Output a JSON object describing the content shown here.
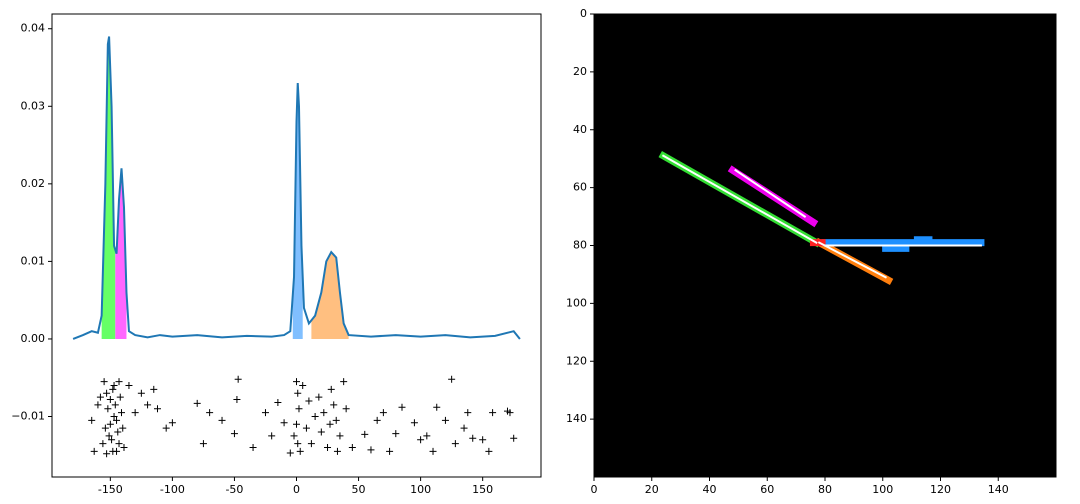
{
  "chart_data": [
    {
      "type": "line",
      "color": "#1f77b4",
      "x": [
        -180,
        -172,
        -165,
        -160,
        -157,
        -154,
        -152,
        -151,
        -149,
        -147,
        -145,
        -143,
        -141,
        -139,
        -137,
        -135,
        -130,
        -120,
        -110,
        -100,
        -80,
        -60,
        -40,
        -20,
        -10,
        -5,
        -2,
        0,
        1,
        2,
        4,
        6,
        10,
        15,
        20,
        24,
        28,
        32,
        35,
        38,
        42,
        60,
        80,
        100,
        120,
        140,
        160,
        175,
        180
      ],
      "values": [
        0,
        0.0005,
        0.001,
        0.0008,
        0.003,
        0.02,
        0.038,
        0.039,
        0.03,
        0.012,
        0.011,
        0.018,
        0.022,
        0.017,
        0.006,
        0.001,
        0.0005,
        0.0002,
        0.0005,
        0.0003,
        0.0005,
        0.0002,
        0.0004,
        0.0003,
        0.0005,
        0.001,
        0.008,
        0.028,
        0.033,
        0.03,
        0.012,
        0.004,
        0.002,
        0.003,
        0.006,
        0.01,
        0.0112,
        0.0105,
        0.006,
        0.002,
        0.0005,
        0.0003,
        0.0005,
        0.0003,
        0.0005,
        0.0002,
        0.0004,
        0.001,
        0
      ],
      "fills": [
        {
          "color": "#66ff66",
          "span": [
            -157,
            -146
          ]
        },
        {
          "color": "#ff66ff",
          "span": [
            -146,
            -137
          ]
        },
        {
          "color": "#80bfff",
          "span": [
            -3,
            5
          ]
        },
        {
          "color": "#ffbf80",
          "span": [
            12,
            42
          ]
        }
      ],
      "scatter": {
        "color": "#000000",
        "marker": "+",
        "x": [
          -160,
          -165,
          -163,
          -158,
          -135,
          -130,
          -125,
          -120,
          -115,
          -112,
          -105,
          -100,
          -80,
          -75,
          -70,
          -60,
          -50,
          -48,
          -47,
          -35,
          -25,
          -20,
          -15,
          -10,
          -5,
          55,
          60,
          65,
          70,
          75,
          80,
          85,
          95,
          100,
          105,
          110,
          113,
          120,
          125,
          128,
          135,
          138,
          142,
          150,
          155,
          158,
          170,
          172,
          175,
          -155,
          -153,
          -152,
          -150,
          -149,
          -148,
          -147,
          -146,
          -145,
          -144,
          -143,
          -142,
          -141,
          -140,
          -139,
          -151,
          -154,
          -156,
          -148,
          -145,
          -150,
          -143,
          -153,
          -147,
          0,
          1,
          2,
          0,
          1,
          3,
          5,
          10,
          15,
          20,
          25,
          28,
          30,
          32,
          35,
          38,
          40,
          8,
          12,
          18,
          22,
          33,
          45,
          -2,
          27
        ],
        "y": [
          -0.0085,
          -0.0105,
          -0.0145,
          -0.0075,
          -0.006,
          -0.0095,
          -0.007,
          -0.0085,
          -0.0065,
          -0.009,
          -0.0115,
          -0.0108,
          -0.0083,
          -0.0135,
          -0.0095,
          -0.0105,
          -0.0122,
          -0.0078,
          -0.0052,
          -0.014,
          -0.0095,
          -0.0125,
          -0.0082,
          -0.0108,
          -0.0147,
          -0.0123,
          -0.0143,
          -0.0105,
          -0.0095,
          -0.0145,
          -0.0122,
          -0.0088,
          -0.0108,
          -0.013,
          -0.0125,
          -0.0145,
          -0.0088,
          -0.0105,
          -0.0052,
          -0.0135,
          -0.0115,
          -0.0095,
          -0.0128,
          -0.013,
          -0.0145,
          -0.0095,
          -0.0093,
          -0.0095,
          -0.0128,
          -0.0055,
          -0.007,
          -0.009,
          -0.011,
          -0.013,
          -0.0145,
          -0.006,
          -0.0085,
          -0.0105,
          -0.012,
          -0.0135,
          -0.0075,
          -0.0095,
          -0.0115,
          -0.014,
          -0.0125,
          -0.0115,
          -0.0135,
          -0.0065,
          -0.0145,
          -0.0078,
          -0.0055,
          -0.0148,
          -0.01,
          -0.0055,
          -0.007,
          -0.009,
          -0.011,
          -0.0135,
          -0.0145,
          -0.006,
          -0.008,
          -0.01,
          -0.012,
          -0.014,
          -0.0065,
          -0.0085,
          -0.0105,
          -0.0125,
          -0.0055,
          -0.009,
          -0.0115,
          -0.0135,
          -0.0075,
          -0.0095,
          -0.0145,
          -0.014,
          -0.0125,
          -0.011
        ]
      },
      "xlim": [
        -197,
        197
      ],
      "ylim": [
        -0.0178,
        0.0419
      ],
      "xticks": [
        -150,
        -100,
        -50,
        0,
        50,
        100,
        150
      ],
      "yticks": [
        {
          "value": -0.01,
          "label": "−0.01"
        },
        {
          "value": 0,
          "label": "0.00"
        },
        0.01,
        0.02,
        0.03,
        0.04
      ]
    },
    {
      "type": "image",
      "background": "#000000",
      "xlim": [
        0,
        160
      ],
      "ylim": [
        160,
        0
      ],
      "xticks": [
        0,
        20,
        40,
        60,
        80,
        100,
        120,
        140
      ],
      "yticks": [
        0,
        20,
        40,
        60,
        80,
        100,
        120,
        140
      ],
      "regions": [
        {
          "color": "#33dd33",
          "x": [
            24,
            77
          ],
          "y": [
            49,
            79
          ]
        },
        {
          "color": "#ee00ee",
          "x": [
            48,
            76
          ],
          "y": [
            54,
            72
          ]
        },
        {
          "color": "#ff7f0e",
          "x": [
            78,
            102
          ],
          "y": [
            79,
            92
          ]
        },
        {
          "color": "#1e90ff",
          "x": [
            80,
            134
          ],
          "y": [
            79,
            79
          ]
        },
        {
          "color": "#1e90ff",
          "x": [
            112,
            116
          ],
          "y": [
            78,
            78
          ]
        },
        {
          "color": "#1e90ff",
          "x": [
            101,
            108
          ],
          "y": [
            81,
            81
          ]
        },
        {
          "color": "#ff2222",
          "x": [
            76,
            79
          ],
          "y": [
            79,
            79
          ]
        }
      ],
      "lines": [
        {
          "color": "#ffffff",
          "x": [
            24,
            77
          ],
          "y": [
            49,
            79
          ]
        },
        {
          "color": "#ffffff",
          "x": [
            49,
            73
          ],
          "y": [
            54,
            70
          ]
        },
        {
          "color": "#ffffff",
          "x": [
            78,
            101
          ],
          "y": [
            79,
            91
          ]
        },
        {
          "color": "#ffffff",
          "x": [
            80,
            134
          ],
          "y": [
            80,
            80
          ]
        }
      ]
    }
  ]
}
